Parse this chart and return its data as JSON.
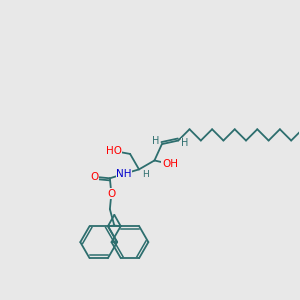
{
  "bg_color": "#e8e8e8",
  "bond_color": "#2d6e6e",
  "O_color": "#ff0000",
  "N_color": "#0000cc",
  "lw": 1.3,
  "fs": 7.5,
  "xlim": [
    0,
    10
  ],
  "ylim": [
    0,
    10
  ]
}
